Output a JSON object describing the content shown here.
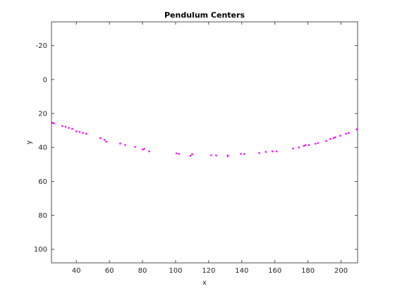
{
  "chart_data": {
    "type": "scatter",
    "title": "Pendulum Centers",
    "xlabel": "x",
    "ylabel": "y",
    "xlim": [
      25,
      210
    ],
    "ylim": [
      -34,
      108
    ],
    "y_reversed": true,
    "grid": false,
    "marker_color": "#ff00ff",
    "x_ticks": [
      40,
      60,
      80,
      100,
      120,
      140,
      160,
      180,
      200
    ],
    "x_tick_labels": [
      "40",
      "60",
      "80",
      "100",
      "120",
      "140",
      "160",
      "180",
      "200"
    ],
    "y_ticks": [
      -20,
      0,
      20,
      40,
      60,
      80,
      100
    ],
    "y_tick_labels": [
      "-20",
      "0",
      "20",
      "40",
      "60",
      "80",
      "100"
    ],
    "points": [
      {
        "x": 25.5,
        "y": 25.5
      },
      {
        "x": 26.5,
        "y": 25.8
      },
      {
        "x": 31.5,
        "y": 27.4
      },
      {
        "x": 33.5,
        "y": 27.8
      },
      {
        "x": 35.5,
        "y": 28.5
      },
      {
        "x": 37.5,
        "y": 29.0
      },
      {
        "x": 40.0,
        "y": 30.5
      },
      {
        "x": 42.0,
        "y": 30.9
      },
      {
        "x": 44.0,
        "y": 31.4
      },
      {
        "x": 46.0,
        "y": 31.9
      },
      {
        "x": 54.5,
        "y": 34.5
      },
      {
        "x": 57.0,
        "y": 35.5
      },
      {
        "x": 58.0,
        "y": 36.6
      },
      {
        "x": 66.5,
        "y": 37.7
      },
      {
        "x": 69.5,
        "y": 38.5
      },
      {
        "x": 75.5,
        "y": 39.7
      },
      {
        "x": 80.0,
        "y": 41.2
      },
      {
        "x": 81.0,
        "y": 40.8
      },
      {
        "x": 84.0,
        "y": 42.3
      },
      {
        "x": 100.5,
        "y": 43.5
      },
      {
        "x": 102.0,
        "y": 43.8
      },
      {
        "x": 109.0,
        "y": 44.9
      },
      {
        "x": 110.0,
        "y": 44.0
      },
      {
        "x": 121.5,
        "y": 44.6
      },
      {
        "x": 124.5,
        "y": 44.7
      },
      {
        "x": 131.5,
        "y": 44.7
      },
      {
        "x": 131.5,
        "y": 45.1
      },
      {
        "x": 139.5,
        "y": 43.8
      },
      {
        "x": 141.5,
        "y": 43.8
      },
      {
        "x": 150.5,
        "y": 43.3
      },
      {
        "x": 154.5,
        "y": 42.6
      },
      {
        "x": 158.5,
        "y": 42.3
      },
      {
        "x": 161.0,
        "y": 42.3
      },
      {
        "x": 171.0,
        "y": 40.6
      },
      {
        "x": 174.5,
        "y": 40.0
      },
      {
        "x": 177.5,
        "y": 39.1
      },
      {
        "x": 178.5,
        "y": 38.6
      },
      {
        "x": 180.5,
        "y": 38.6
      },
      {
        "x": 184.5,
        "y": 37.8
      },
      {
        "x": 186.0,
        "y": 37.4
      },
      {
        "x": 191.0,
        "y": 36.2
      },
      {
        "x": 193.5,
        "y": 35.0
      },
      {
        "x": 195.5,
        "y": 34.5
      },
      {
        "x": 196.5,
        "y": 34.0
      },
      {
        "x": 199.5,
        "y": 33.1
      },
      {
        "x": 203.0,
        "y": 31.9
      },
      {
        "x": 204.5,
        "y": 31.4
      },
      {
        "x": 209.5,
        "y": 29.3
      }
    ]
  }
}
